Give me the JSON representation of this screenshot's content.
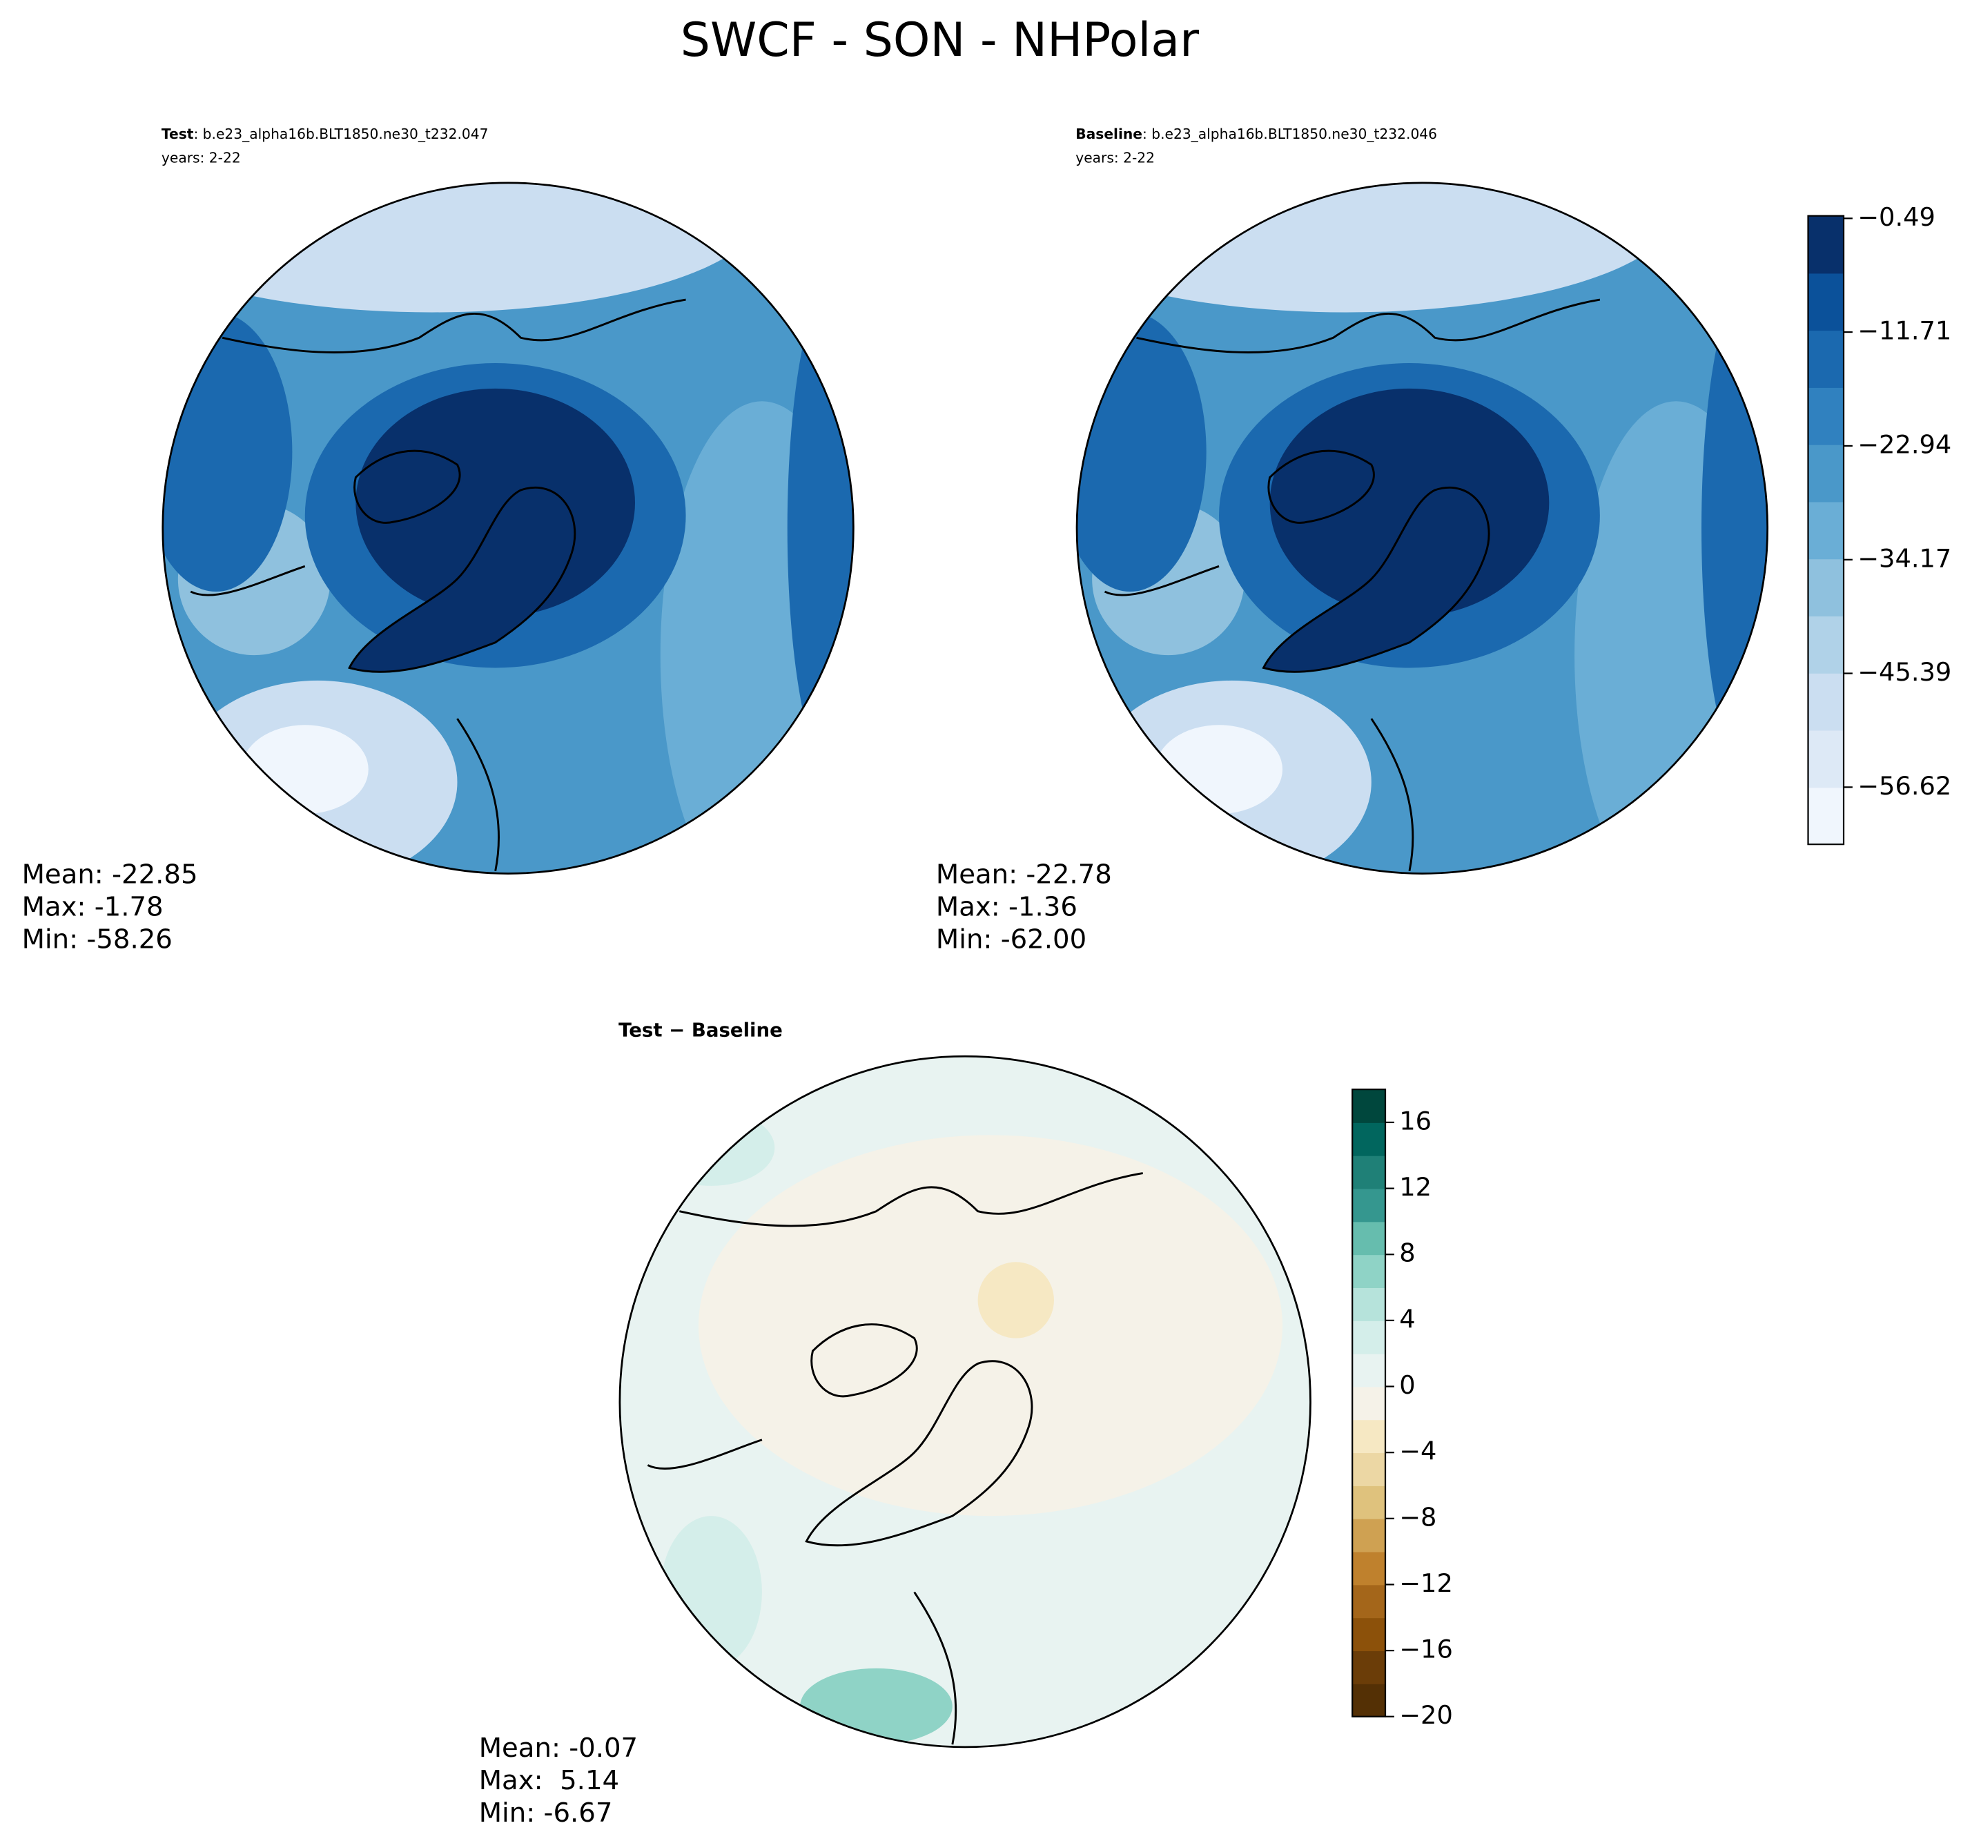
{
  "title": "SWCF - SON - NHPolar",
  "panels": [
    {
      "label": "Test",
      "case": ": b.e23_alpha16b.BLT1850.ne30_t232.047",
      "years": "years: 2-22",
      "stats": [
        "Mean: -22.85",
        "Max: -1.78",
        "Min: -58.26"
      ]
    },
    {
      "label": "Baseline",
      "case": ": b.e23_alpha16b.BLT1850.ne30_t232.046",
      "years": "years: 2-22",
      "stats": [
        "Mean: -22.78",
        "Max: -1.36",
        "Min: -62.00"
      ]
    },
    {
      "label": "Test − Baseline",
      "stats": [
        "Mean: -0.07",
        "Max:  5.14",
        "Min: -6.67"
      ]
    }
  ],
  "colorbars": [
    {
      "lim": [
        -62.26,
        -0.24
      ],
      "ticks": [
        {
          "value": -0.49,
          "label": "−0.49"
        },
        {
          "value": -11.71,
          "label": "−11.71"
        },
        {
          "value": -22.94,
          "label": "−22.94"
        },
        {
          "value": -34.17,
          "label": "−34.17"
        },
        {
          "value": -45.39,
          "label": "−45.39"
        },
        {
          "value": -56.62,
          "label": "−56.62"
        }
      ],
      "colors": [
        "#f0f6fd",
        "#dde9f6",
        "#cbdef1",
        "#b0d2e8",
        "#8fc1de",
        "#6aaed6",
        "#4a98c9",
        "#3081bf",
        "#1b69af",
        "#0b519a",
        "#08306b"
      ]
    },
    {
      "lim": [
        -20,
        18
      ],
      "ticks": [
        {
          "value": -20,
          "label": "−20"
        },
        {
          "value": -16,
          "label": "−16"
        },
        {
          "value": -12,
          "label": "−12"
        },
        {
          "value": -8,
          "label": "−8"
        },
        {
          "value": -4,
          "label": "−4"
        },
        0,
        4,
        8,
        12,
        16
      ],
      "colors": [
        "#543005",
        "#6b3d08",
        "#8c510a",
        "#a4661a",
        "#bf812d",
        "#cfa152",
        "#dfc27d",
        "#ecd7a4",
        "#f6e8c3",
        "#f5f2e8",
        "#e8f3f1",
        "#d4eeea",
        "#b6e3db",
        "#8fd3c6",
        "#66bdae",
        "#35978f",
        "#1f8077",
        "#01665e",
        "#00473d"
      ]
    }
  ]
}
